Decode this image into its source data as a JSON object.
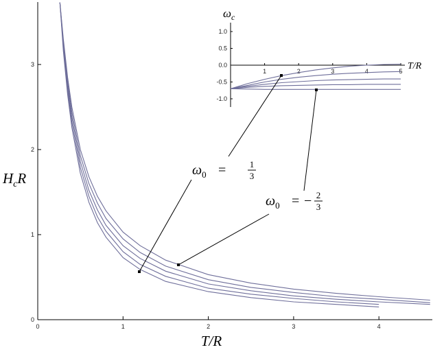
{
  "chart_data": [
    {
      "type": "line",
      "xlabel": "T/R",
      "ylabel": {
        "base": "H",
        "sub": "c",
        "rest": "R"
      },
      "x": [
        0.26,
        0.3,
        0.35,
        0.4,
        0.5,
        0.6,
        0.7,
        0.8,
        1,
        1.2,
        1.5,
        2,
        2.5,
        3,
        3.5,
        4,
        4.6
      ],
      "color": "#6e6e9a",
      "series": [
        {
          "values": [
            3.73,
            3.3,
            2.85,
            2.5,
            2.0,
            1.68,
            1.45,
            1.28,
            1.03,
            0.87,
            0.7,
            0.53,
            0.43,
            0.36,
            0.31,
            0.27,
            0.23
          ]
        },
        {
          "values": [
            3.73,
            3.27,
            2.8,
            2.44,
            1.93,
            1.6,
            1.37,
            1.19,
            0.95,
            0.79,
            0.63,
            0.47,
            0.38,
            0.32,
            0.27,
            0.24,
            0.2
          ]
        },
        {
          "values": [
            3.73,
            3.24,
            2.75,
            2.38,
            1.86,
            1.52,
            1.29,
            1.11,
            0.87,
            0.72,
            0.57,
            0.42,
            0.34,
            0.28,
            0.24,
            0.21,
            0.18
          ]
        },
        {
          "values": [
            3.73,
            3.2,
            2.7,
            2.32,
            1.79,
            1.45,
            1.21,
            1.04,
            0.8,
            0.65,
            0.51,
            0.37,
            0.3,
            0.25,
            0.21,
            0.18,
            null
          ]
        },
        {
          "values": [
            3.73,
            3.16,
            2.65,
            2.26,
            1.72,
            1.38,
            1.14,
            0.97,
            0.73,
            0.59,
            0.45,
            0.33,
            0.26,
            0.21,
            0.18,
            0.15,
            null
          ]
        }
      ],
      "xlim": [
        0,
        4.626
      ],
      "ylim": [
        0,
        3.734
      ],
      "xticks": [
        0,
        1,
        2,
        3,
        4
      ],
      "yticks": [
        0,
        1,
        2,
        3
      ]
    },
    {
      "type": "line",
      "xlabel": "T/R",
      "ylabel": {
        "base": "ω",
        "sub": "c"
      },
      "x": [
        0,
        0.5,
        1,
        1.5,
        2,
        2.5,
        3,
        3.5,
        4,
        4.5,
        5
      ],
      "color": "#6e6e9a",
      "series": [
        {
          "values": [
            -0.7,
            -0.55,
            -0.42,
            -0.31,
            -0.22,
            -0.14,
            -0.08,
            -0.03,
            0.0,
            0.02,
            0.03
          ]
        },
        {
          "values": [
            -0.7,
            -0.6,
            -0.5,
            -0.42,
            -0.36,
            -0.31,
            -0.27,
            -0.24,
            -0.22,
            -0.2,
            -0.19
          ]
        },
        {
          "values": [
            -0.7,
            -0.63,
            -0.57,
            -0.52,
            -0.49,
            -0.46,
            -0.44,
            -0.43,
            -0.42,
            -0.41,
            -0.41
          ]
        },
        {
          "values": [
            -0.7,
            -0.66,
            -0.63,
            -0.61,
            -0.6,
            -0.59,
            -0.58,
            -0.58,
            -0.57,
            -0.57,
            -0.57
          ]
        },
        {
          "values": [
            -0.7,
            -0.71,
            -0.72,
            -0.72,
            -0.72,
            -0.72,
            -0.72,
            -0.72,
            -0.72,
            -0.72,
            -0.72
          ]
        }
      ],
      "xlim": [
        0,
        5
      ],
      "ylim": [
        -1.245,
        1.265
      ],
      "xticks": [
        1,
        2,
        3,
        4,
        5
      ],
      "yticks": [
        {
          "value": 1,
          "label": "1.0"
        },
        {
          "value": 0.5,
          "label": "0.5"
        },
        {
          "value": 0,
          "label": "0.0"
        },
        {
          "value": -0.5,
          "label": "-0.5"
        },
        {
          "value": -1,
          "label": "-1.0"
        }
      ]
    }
  ],
  "annotations": [
    {
      "lhs": "ω",
      "sub": "0",
      "rel": "=",
      "num": "1",
      "den": "3"
    },
    {
      "lhs": "ω",
      "sub": "0",
      "rel": "=",
      "sign": "−",
      "num": "2",
      "den": "3"
    }
  ]
}
